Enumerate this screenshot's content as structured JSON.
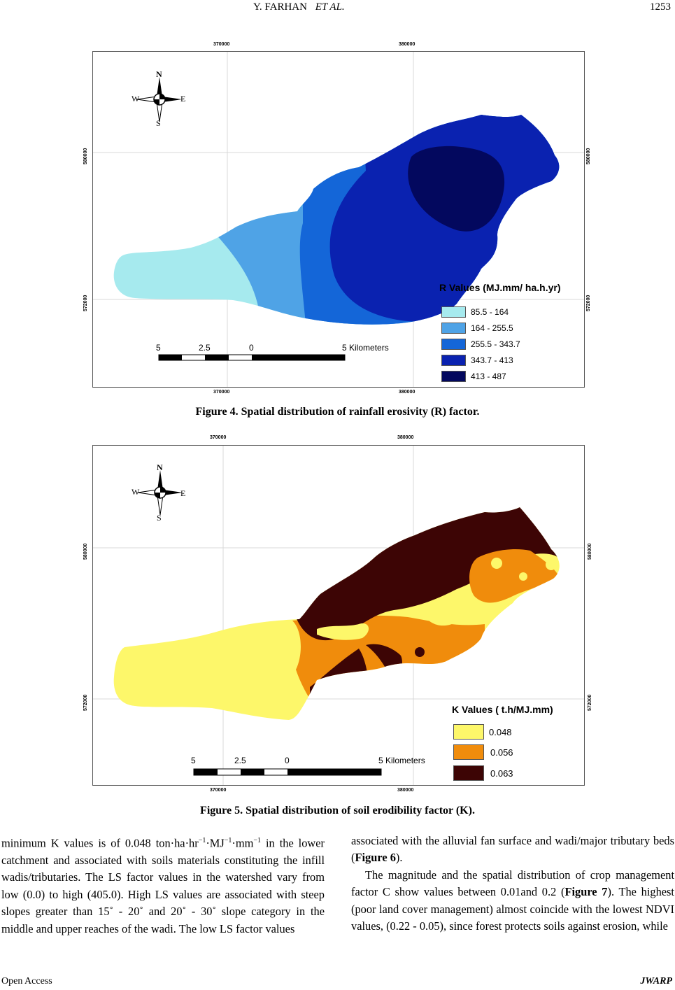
{
  "header": {
    "authors": "Y. FARHAN",
    "et_al": "ET AL.",
    "page": "1253"
  },
  "fig4": {
    "coords": {
      "x1": "370000",
      "x2": "380000",
      "y1": "580000",
      "y2": "572000"
    },
    "compass": {
      "n": "N",
      "s": "S",
      "e": "E",
      "w": "W"
    },
    "legend_title": "R Values (MJ.mm/ ha.h.yr)",
    "legend": [
      {
        "label": "85.5 - 164",
        "color": "#a6eaee"
      },
      {
        "label": "164 - 255.5",
        "color": "#4fa3e6"
      },
      {
        "label": "255.5 - 343.7",
        "color": "#1466d8"
      },
      {
        "label": "343.7 - 413",
        "color": "#0a22b0"
      },
      {
        "label": "413 - 487",
        "color": "#03085e"
      }
    ],
    "scale": {
      "a": "5",
      "b": "2.5",
      "c": "0",
      "d": "5 Kilometers"
    },
    "caption": "Figure 4. Spatial distribution of rainfall erosivity (R) factor."
  },
  "fig5": {
    "coords": {
      "x1": "370000",
      "x2": "380000",
      "y1": "580000",
      "y2": "572000"
    },
    "compass": {
      "n": "N",
      "s": "S",
      "e": "E",
      "w": "W"
    },
    "legend_title": "K Values ( t.h/MJ.mm)",
    "legend": [
      {
        "label": "0.048",
        "color": "#fdf76a"
      },
      {
        "label": "0.056",
        "color": "#f08c0c"
      },
      {
        "label": "0.063",
        "color": "#3d0505"
      }
    ],
    "scale": {
      "a": "5",
      "b": "2.5",
      "c": "0",
      "d": "5 Kilometers"
    },
    "caption": "Figure 5. Spatial distribution of soil erodibility factor (K)."
  },
  "body": {
    "left": {
      "t1": "minimum K values is of 0.048 ton·ha·hr",
      "sup1": "−1",
      "t2": "·MJ",
      "sup2": "−1",
      "t3": "·mm",
      "sup3": "−1",
      "t4": " in the lower catchment and associated with soils materials constituting the infill wadis/tributaries. The LS factor values in the watershed vary from low (0.0) to high (405.0). High LS values are associated with steep slopes greater than 15˚ - 20˚ and 20˚ - 30˚ slope category in the middle and upper reaches of the wadi. The low LS factor values"
    },
    "right": {
      "p1a": "associated with the alluvial fan surface and wadi/major tributary beds (",
      "p1ref": "Figure 6",
      "p1b": ").",
      "p2a": "The magnitude and the spatial distribution of crop management factor C show values between 0.01and 0.2 (",
      "p2ref": "Figure 7",
      "p2b": "). The highest (poor land cover management) almost coincide with the lowest NDVI values, (0.22 - 0.05), since forest protects soils against erosion, while"
    }
  },
  "footer": {
    "left": "Open Access",
    "right": "JWARP"
  }
}
